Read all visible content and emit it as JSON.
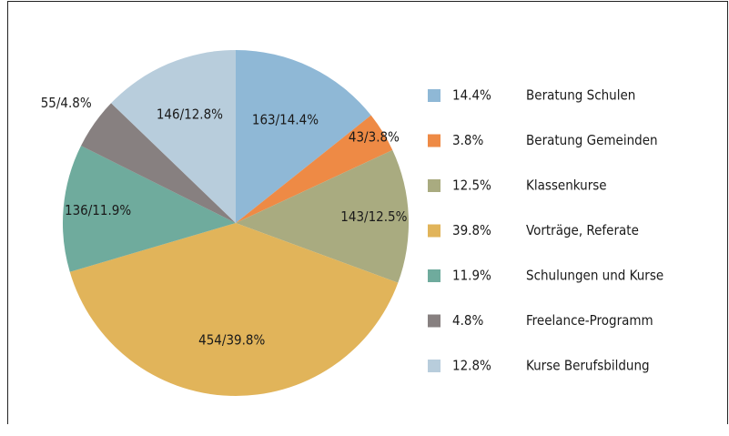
{
  "chart_data": {
    "type": "pie",
    "categories": [
      "Beratung Schulen",
      "Beratung Gemeinden",
      "Klassenkurse",
      "Vorträge, Referate",
      "Schulungen und Kurse",
      "Freelance-Programm",
      "Kurse Berufsbildung"
    ],
    "values": [
      163,
      43,
      143,
      454,
      136,
      55,
      146
    ],
    "value_labels": [
      "163/14.4%",
      "43/3.8%",
      "143/12.5%",
      "454/39.8%",
      "136/11.9%",
      "55/4.8%",
      "146/12.8%"
    ],
    "percent_labels": [
      "14.4%",
      "3.8%",
      "12.5%",
      "39.8%",
      "11.9%",
      "4.8%",
      "12.8%"
    ],
    "colors": [
      "#8fb8d6",
      "#ee8a45",
      "#a9ab80",
      "#e1b45a",
      "#6fab9d",
      "#878080",
      "#b8cddc"
    ],
    "legend": "right"
  }
}
